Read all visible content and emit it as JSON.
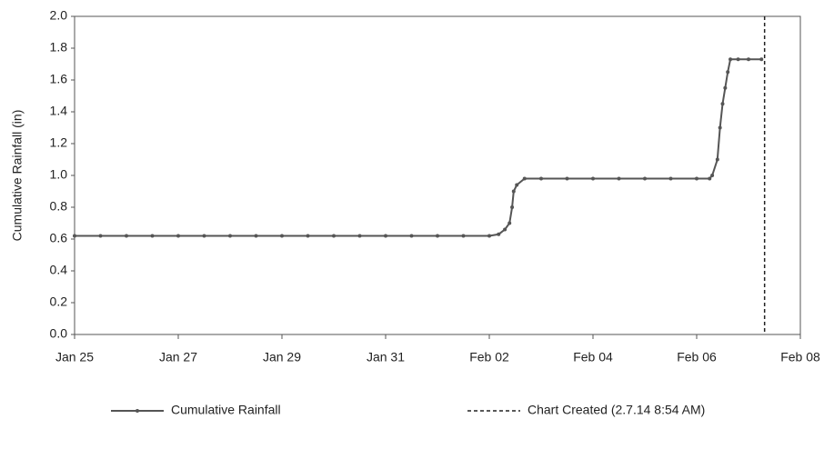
{
  "chart_data": {
    "type": "line",
    "ylabel": "Cumulative Rainfall (in)",
    "xlim": [
      0,
      14
    ],
    "xticks": [
      {
        "value": 0,
        "label": "Jan 25"
      },
      {
        "value": 2,
        "label": "Jan 27"
      },
      {
        "value": 4,
        "label": "Jan 29"
      },
      {
        "value": 6,
        "label": "Jan 31"
      },
      {
        "value": 8,
        "label": "Feb 02"
      },
      {
        "value": 10,
        "label": "Feb 04"
      },
      {
        "value": 12,
        "label": "Feb 06"
      },
      {
        "value": 14,
        "label": "Feb 08"
      }
    ],
    "ylim": [
      0,
      2
    ],
    "yticks": [
      {
        "value": 0,
        "label": "0.0"
      },
      0.2,
      0.4,
      0.6,
      0.8,
      {
        "value": 1,
        "label": "1.0"
      },
      1.2,
      1.4,
      1.6,
      1.8,
      {
        "value": 2,
        "label": "2.0"
      }
    ],
    "x": [
      0,
      0.5,
      1,
      1.5,
      2,
      2.5,
      3,
      3.5,
      4,
      4.5,
      5,
      5.5,
      6,
      6.5,
      7,
      7.5,
      8,
      8.18,
      8.3,
      8.39,
      8.44,
      8.47,
      8.53,
      8.68,
      9,
      9.5,
      10,
      10.5,
      11,
      11.5,
      12,
      12.25,
      12.3,
      12.4,
      12.45,
      12.5,
      12.55,
      12.6,
      12.65,
      12.8,
      13,
      13.25
    ],
    "series": [
      {
        "name": "Cumulative Rainfall",
        "color": "#555555",
        "values": [
          0.62,
          0.62,
          0.62,
          0.62,
          0.62,
          0.62,
          0.62,
          0.62,
          0.62,
          0.62,
          0.62,
          0.62,
          0.62,
          0.62,
          0.62,
          0.62,
          0.62,
          0.63,
          0.66,
          0.7,
          0.8,
          0.9,
          0.94,
          0.98,
          0.98,
          0.98,
          0.98,
          0.98,
          0.98,
          0.98,
          0.98,
          0.98,
          1.0,
          1.1,
          1.3,
          1.45,
          1.55,
          1.65,
          1.73,
          1.73,
          1.73,
          1.73
        ]
      }
    ],
    "vline": {
      "name": "Chart Created (2.7.14 8:54 AM)",
      "x": 13.31,
      "color": "#222222"
    }
  }
}
